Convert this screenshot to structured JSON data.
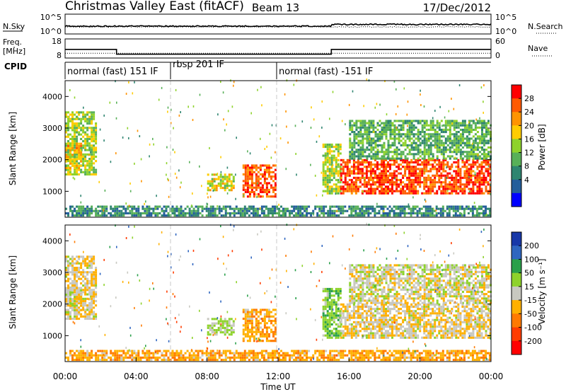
{
  "header": {
    "title": "Christmas Valley East (fitACF)",
    "beam": "Beam 13",
    "date": "17/Dec/2012"
  },
  "nsky": {
    "label": "N.Sky",
    "ticks": [
      "10^5",
      "10^0"
    ],
    "right_label": "N.Search",
    "right_ticks": [
      "10^5",
      "10^0"
    ]
  },
  "freq": {
    "label_line1": "Freq.",
    "label_line2": "[MHz]",
    "ticks": [
      "18",
      "8"
    ],
    "right_label": "Nave",
    "right_ticks": [
      "60",
      "0"
    ]
  },
  "cpid": {
    "label": "CPID",
    "segments": [
      {
        "start_hour": 0,
        "text": "normal (fast) 151 IF"
      },
      {
        "start_hour": 6,
        "text": "rbsp 201 IF"
      },
      {
        "start_hour": 12,
        "text": "normal (fast) -151 IF"
      }
    ]
  },
  "power_colorbar": {
    "title": "Power [dB]",
    "ticks": [
      "28",
      "24",
      "20",
      "16",
      "12",
      "8",
      "4"
    ],
    "colors": [
      "#ff0000",
      "#ff5a00",
      "#ff9400",
      "#ffcc00",
      "#8ed22b",
      "#58b058",
      "#2f8570",
      "#245e9b",
      "#0000ff"
    ]
  },
  "velocity_colorbar": {
    "title": "Velocity [m s⁻¹]",
    "ticks": [
      "200",
      "100",
      "50",
      "15",
      "-15",
      "-50",
      "-100",
      "-200"
    ],
    "colors": [
      "#1838a8",
      "#2f66c0",
      "#2aa04a",
      "#8ed22b",
      "#c8c8c0",
      "#ffb000",
      "#ff7a00",
      "#ff3c00",
      "#ff0000"
    ]
  },
  "x_axis": {
    "title": "Time UT",
    "ticks": [
      "00:00",
      "04:00",
      "08:00",
      "12:00",
      "16:00",
      "20:00",
      "00:00"
    ]
  },
  "y_axis": {
    "title": "Slant Range [km]",
    "ticks": [
      "4000",
      "3000",
      "2000",
      "1000"
    ]
  },
  "chart_data": {
    "type": "heatmap",
    "title": "Christmas Valley East (fitACF)",
    "xlabel": "Time UT",
    "ylabel": "Slant Range [km]",
    "xlim": [
      0,
      24
    ],
    "ylim": [
      180,
      4500
    ],
    "freq_series_mhz": [
      {
        "start_hour": 0,
        "end_hour": 2.9,
        "value": 12.5
      },
      {
        "start_hour": 2.9,
        "end_hour": 15.0,
        "value": 10.0
      },
      {
        "start_hour": 15.0,
        "end_hour": 24,
        "value": 12.5
      }
    ],
    "nave_dotted": 15,
    "echo_regions": [
      {
        "name": "early-evening-a",
        "t0": 0.0,
        "t1": 1.7,
        "r0": 1500,
        "r1": 3500,
        "power_db": 14,
        "velocity": -10
      },
      {
        "name": "early-evening-b",
        "t0": 0.0,
        "t1": 0.9,
        "r0": 1700,
        "r1": 2500,
        "power_db": 20,
        "velocity": 0
      },
      {
        "name": "near-range-band",
        "t0": 0.0,
        "t1": 24.0,
        "r0": 200,
        "r1": 500,
        "power_db": 6,
        "velocity": -40
      },
      {
        "name": "midnight-patch",
        "t0": 8.0,
        "t1": 9.5,
        "r0": 1000,
        "r1": 1500,
        "power_db": 16,
        "velocity": 20
      },
      {
        "name": "midday-block",
        "t0": 10.0,
        "t1": 11.9,
        "r0": 800,
        "r1": 1800,
        "power_db": 26,
        "velocity": -40
      },
      {
        "name": "dawn-streak",
        "t0": 14.5,
        "t1": 15.5,
        "r0": 900,
        "r1": 2500,
        "power_db": 14,
        "velocity": 40
      },
      {
        "name": "dayside-band",
        "t0": 15.5,
        "t1": 24.0,
        "r0": 900,
        "r1": 2000,
        "power_db": 27,
        "velocity": -10
      },
      {
        "name": "dayside-upper",
        "t0": 16.0,
        "t1": 24.0,
        "r0": 2000,
        "r1": 3200,
        "power_db": 10,
        "velocity": 0
      }
    ]
  }
}
